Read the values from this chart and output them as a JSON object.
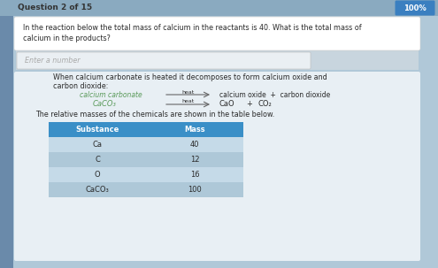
{
  "question_label": "Question 2 of 15",
  "question_text_line1": "In the reaction below the total mass of calcium in the reactants is 40. What is the total mass of",
  "question_text_line2": "calcium in the products?",
  "input_placeholder": "Enter a number",
  "info_text_line1": "When calcium carbonate is heated it decomposes to form calcium oxide and",
  "info_text_line2": "carbon dioxide:",
  "eq_word_left": "calcium carbonate",
  "eq_word_arrow_label": "heat",
  "eq_word_right": "calcium oxide  +  carbon dioxide",
  "eq_chem_left": "CaCO₃",
  "eq_chem_arrow_label": "heat",
  "eq_chem_right_1": "CaO",
  "eq_chem_right_2": "+",
  "eq_chem_right_3": "CO₂",
  "table_intro": "The relative masses of the chemicals are shown in the table below.",
  "table_headers": [
    "Substance",
    "Mass"
  ],
  "table_rows": [
    [
      "Ca",
      "40"
    ],
    [
      "C",
      "12"
    ],
    [
      "O",
      "16"
    ],
    [
      "CaCO₃",
      "100"
    ]
  ],
  "bg_top_color": "#7a9ab5",
  "bg_main_color": "#b0c8d8",
  "panel_color": "#e8eff4",
  "white_box_color": "#f5f7f8",
  "input_box_color": "#eaeff3",
  "table_header_color": "#3a8fc7",
  "table_row_color_1": "#c5dae8",
  "table_row_color_2": "#aec8d8",
  "top_bar_color": "#3a7fc0",
  "top_right_label": "100%",
  "text_color_dark": "#2a2a2a",
  "text_color_green": "#5a9a5a",
  "text_color_gray": "#999999",
  "header_text_color": "#ffffff",
  "question_label_color": "#333333",
  "bottom_panel_color": "#dce6ee"
}
